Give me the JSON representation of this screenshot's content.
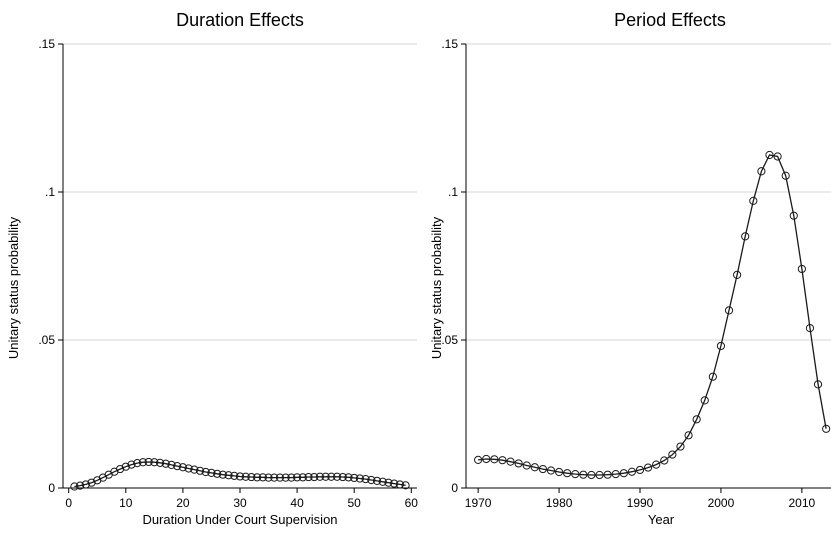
{
  "chart_data": [
    {
      "type": "line",
      "title": "Duration Effects",
      "xlabel": "Duration Under Court Supervision",
      "ylabel": "Unitary status probability",
      "xlim": [
        -1,
        61
      ],
      "ylim": [
        0,
        0.15
      ],
      "xticks": [
        0,
        10,
        20,
        30,
        40,
        50,
        60
      ],
      "xtick_labels": [
        "0",
        "10",
        "20",
        "30",
        "40",
        "50",
        "60"
      ],
      "yticks": [
        0,
        0.05,
        0.1,
        0.15
      ],
      "ytick_labels": [
        "0",
        ".05",
        ".1",
        ".15"
      ],
      "grid": "horizontal",
      "marker": "hollow-circle",
      "series": [
        {
          "x": [
            1,
            2,
            3,
            4,
            5,
            6,
            7,
            8,
            9,
            10,
            11,
            12,
            13,
            14,
            15,
            16,
            17,
            18,
            19,
            20,
            21,
            22,
            23,
            24,
            25,
            26,
            27,
            28,
            29,
            30,
            31,
            32,
            33,
            34,
            35,
            36,
            37,
            38,
            39,
            40,
            41,
            42,
            43,
            44,
            45,
            46,
            47,
            48,
            49,
            50,
            51,
            52,
            53,
            54,
            55,
            56,
            57,
            58,
            59
          ],
          "y": [
            0.0005,
            0.0008,
            0.0012,
            0.0018,
            0.0026,
            0.0035,
            0.0045,
            0.0055,
            0.0064,
            0.0072,
            0.0079,
            0.0084,
            0.0087,
            0.0088,
            0.0087,
            0.0085,
            0.0082,
            0.0078,
            0.0074,
            0.007,
            0.0066,
            0.0062,
            0.0058,
            0.0054,
            0.0051,
            0.0048,
            0.0045,
            0.0043,
            0.0041,
            0.0039,
            0.0038,
            0.0037,
            0.0036,
            0.0036,
            0.0035,
            0.0035,
            0.0035,
            0.0035,
            0.0035,
            0.0036,
            0.0036,
            0.0037,
            0.0037,
            0.0038,
            0.0038,
            0.0038,
            0.0038,
            0.0037,
            0.0036,
            0.0034,
            0.0032,
            0.003,
            0.0027,
            0.0024,
            0.0021,
            0.0018,
            0.0015,
            0.0012,
            0.0009
          ]
        }
      ]
    },
    {
      "type": "line",
      "title": "Period Effects",
      "xlabel": "Year",
      "ylabel": "Unitary status probability",
      "xlim": [
        1968.5,
        2013.6
      ],
      "ylim": [
        0,
        0.15
      ],
      "xticks": [
        1970,
        1980,
        1990,
        2000,
        2010
      ],
      "xtick_labels": [
        "1970",
        "1980",
        "1990",
        "2000",
        "2010"
      ],
      "yticks": [
        0,
        0.05,
        0.1,
        0.15
      ],
      "ytick_labels": [
        "0",
        ".05",
        ".1",
        ".15"
      ],
      "grid": "horizontal",
      "marker": "hollow-circle",
      "series": [
        {
          "x": [
            1970,
            1971,
            1972,
            1973,
            1974,
            1975,
            1976,
            1977,
            1978,
            1979,
            1980,
            1981,
            1982,
            1983,
            1984,
            1985,
            1986,
            1987,
            1988,
            1989,
            1990,
            1991,
            1992,
            1993,
            1994,
            1995,
            1996,
            1997,
            1998,
            1999,
            2000,
            2001,
            2002,
            2003,
            2004,
            2005,
            2006,
            2007,
            2008,
            2009,
            2010,
            2011,
            2012,
            2013
          ],
          "y": [
            0.0095,
            0.0098,
            0.0097,
            0.0094,
            0.0089,
            0.0083,
            0.0076,
            0.007,
            0.0064,
            0.0059,
            0.0054,
            0.005,
            0.0047,
            0.0045,
            0.0044,
            0.0044,
            0.0045,
            0.0047,
            0.005,
            0.0055,
            0.0061,
            0.0069,
            0.0079,
            0.0093,
            0.0113,
            0.014,
            0.0178,
            0.0232,
            0.0296,
            0.0376,
            0.048,
            0.06,
            0.072,
            0.085,
            0.097,
            0.107,
            0.1125,
            0.112,
            0.1055,
            0.092,
            0.074,
            0.054,
            0.035,
            0.02
          ]
        }
      ]
    }
  ]
}
